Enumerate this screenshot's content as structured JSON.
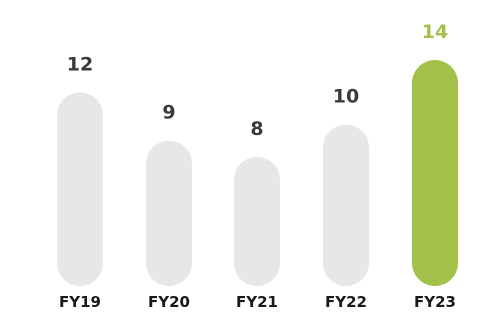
{
  "chart_data": {
    "type": "bar",
    "categories": [
      "FY19",
      "FY20",
      "FY21",
      "FY22",
      "FY23"
    ],
    "values": [
      12,
      9,
      8,
      10,
      14
    ],
    "highlight_index": 4,
    "title": "",
    "xlabel": "",
    "ylabel": "",
    "ylim": [
      0,
      14
    ],
    "grid": false,
    "legend": "none",
    "colors": {
      "bar": "#e6e7e8",
      "highlight_bar": "#a3c14a",
      "value_label": "#3a3a3a",
      "highlight_value_label": "#a3c14a",
      "tick_label": "#1a1a1a"
    }
  }
}
